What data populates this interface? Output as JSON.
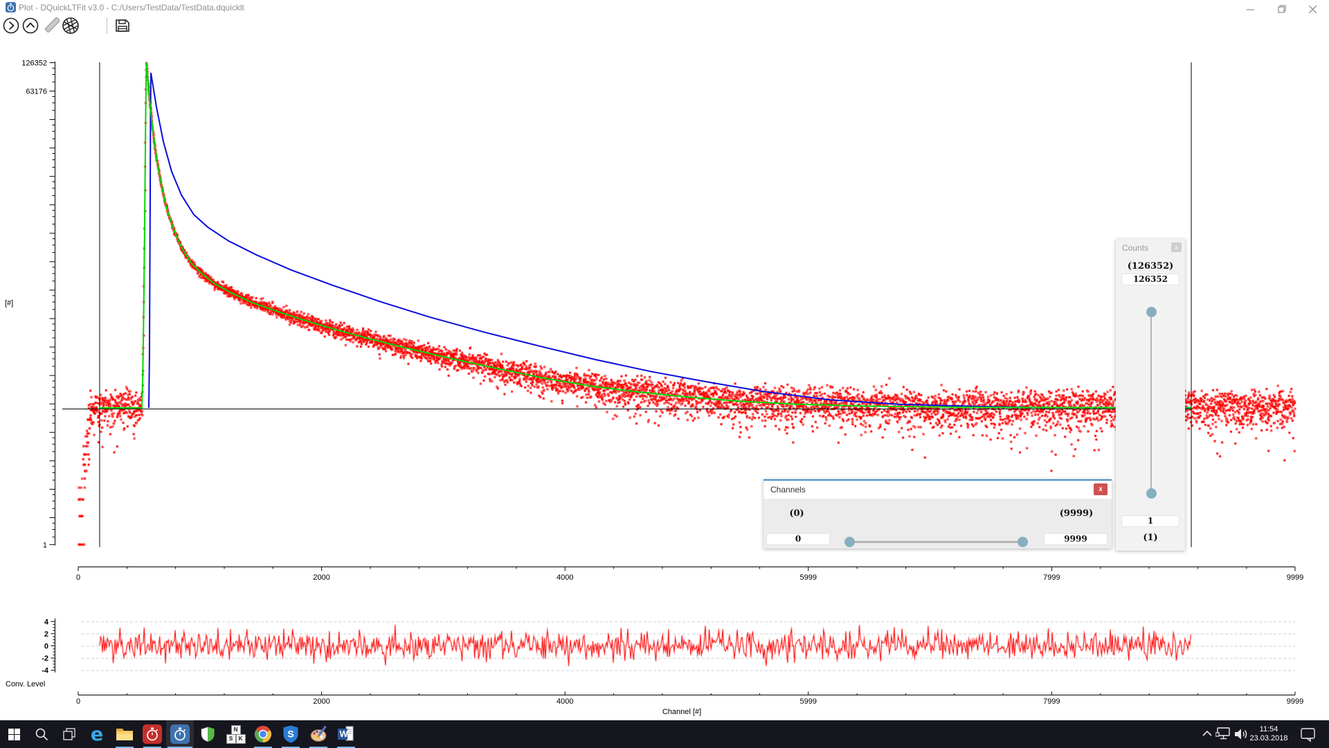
{
  "window": {
    "title": "Plot - DQuickLTFit v3.0 - C:/Users/TestData/TestData.dquicklt",
    "app_icon": "stopwatch-icon",
    "controls": [
      {
        "name": "minimize-button"
      },
      {
        "name": "restore-button"
      },
      {
        "name": "close-button"
      }
    ]
  },
  "toolbar": {
    "icons": [
      {
        "name": "chevron-right-circle-icon"
      },
      {
        "name": "chevron-up-circle-icon"
      },
      {
        "name": "pencil-icon"
      },
      {
        "name": "aperture-icon"
      },
      {
        "name": "save-icon"
      }
    ]
  },
  "chart_data": [
    {
      "type": "scatter",
      "title": "",
      "y_label": "[#]",
      "y_scale": "log2",
      "x_ticks": [
        {
          "label": "0",
          "ch": 0
        },
        {
          "label": "2000",
          "ch": 2000
        },
        {
          "label": "4000",
          "ch": 4000
        },
        {
          "label": "5999",
          "ch": 5999
        },
        {
          "label": "7999",
          "ch": 7999
        },
        {
          "label": "9999",
          "ch": 9999
        }
      ],
      "y_ticks": [
        {
          "label": "126352",
          "v": 126352
        },
        {
          "label": "63176",
          "v": 63176
        },
        {
          "label": "1",
          "v": 1
        }
      ],
      "xlim": [
        0,
        9999
      ],
      "ylim": [
        1,
        126352
      ],
      "baseline_counts": 28,
      "roi_channels": [
        176,
        9146
      ],
      "series": [
        {
          "name": "lifetime-spectrum-data",
          "type": "scatter",
          "color": "#ff0000",
          "marker": "3px squares, mix of filled and open",
          "noise_model": "poisson around fit curve, baseline 28 counts",
          "noise_seed": 1234,
          "step_ch": 1.6,
          "sigma_scale": 1.25,
          "open_fraction": 0.45,
          "outlier_prob": 0.003,
          "low_channel_ramp": "counts = exp(ch/30) capped at 28 for ch < 105"
        },
        {
          "name": "fit-curve",
          "type": "line",
          "color": "#00d800",
          "points_ch_counts": [
            [
              176,
              28
            ],
            [
              523,
              28
            ],
            [
              530,
              60
            ],
            [
              535,
              150
            ],
            [
              540,
              450
            ],
            [
              545,
              1800
            ],
            [
              549,
              6000
            ],
            [
              552,
              18000
            ],
            [
              555,
              45000
            ],
            [
              558,
              85000
            ],
            [
              561,
              117000
            ],
            [
              563,
              126352
            ],
            [
              574,
              78000
            ],
            [
              591,
              44500
            ],
            [
              614,
              23600
            ],
            [
              643,
              12400
            ],
            [
              677,
              7030
            ],
            [
              722,
              3830
            ],
            [
              779,
              2240
            ],
            [
              848,
              1400
            ],
            [
              927,
              960
            ],
            [
              1018,
              734
            ],
            [
              1120,
              580
            ],
            [
              1263,
              459
            ],
            [
              1433,
              363
            ],
            [
              1632,
              295
            ],
            [
              1860,
              237
            ],
            [
              2116,
              189
            ],
            [
              2400,
              150
            ],
            [
              2713,
              119
            ],
            [
              3054,
              94
            ],
            [
              3424,
              74
            ],
            [
              3822,
              58
            ],
            [
              4220,
              47.5
            ],
            [
              4618,
              41
            ],
            [
              5017,
              36.4
            ],
            [
              5443,
              32.9
            ],
            [
              5898,
              30.7
            ],
            [
              6467,
              29.2
            ],
            [
              7320,
              28.4
            ],
            [
              9146,
              28
            ]
          ]
        },
        {
          "name": "component-curve",
          "type": "line",
          "color": "#0b0bdc",
          "points_ch_counts": [
            [
              580,
              28
            ],
            [
              585,
              100
            ],
            [
              589,
              1200
            ],
            [
              592,
              8000
            ],
            [
              594,
              30000
            ],
            [
              596,
              70000
            ],
            [
              597,
              98600
            ],
            [
              643,
              42500
            ],
            [
              700,
              18300
            ],
            [
              768,
              8870
            ],
            [
              848,
              5010
            ],
            [
              950,
              3110
            ],
            [
              1063,
              2300
            ],
            [
              1234,
              1640
            ],
            [
              1462,
              1170
            ],
            [
              1746,
              810
            ],
            [
              2087,
              558
            ],
            [
              2485,
              372
            ],
            [
              2883,
              257
            ],
            [
              3338,
              177
            ],
            [
              3793,
              126
            ],
            [
              4248,
              91
            ],
            [
              4703,
              68
            ],
            [
              5158,
              53
            ],
            [
              5613,
              42
            ],
            [
              6182,
              34
            ],
            [
              6751,
              30.5
            ],
            [
              7320,
              29.1
            ],
            [
              7889,
              28.3
            ],
            [
              9146,
              28.2
            ]
          ]
        }
      ]
    },
    {
      "type": "line",
      "label": "Conv. Level",
      "x_label": "Channel [#]",
      "color": "#ff0000",
      "y_ticks": [
        {
          "label": "4",
          "v": 4
        },
        {
          "label": "2",
          "v": 2
        },
        {
          "label": "0",
          "v": 0
        },
        {
          "label": "-2",
          "v": -2
        },
        {
          "label": "-4",
          "v": -4
        }
      ],
      "ylim": [
        -4.6,
        4.6
      ],
      "x_range_ch": [
        176,
        9146
      ],
      "sigma": 1.2,
      "clip": 3.85,
      "gridline_color": "#cbcbcb",
      "grid_dashed": true
    }
  ],
  "panels": {
    "counts": {
      "title": "Counts",
      "close_glyph": "x",
      "max_hint": "(126352)",
      "max_value": "126352",
      "min_value": "1",
      "min_hint": "(1)"
    },
    "channels": {
      "title": "Channels",
      "close_glyph": "x",
      "left_hint": "(0)",
      "left_value": "0",
      "right_hint": "(9999)",
      "right_value": "9999"
    }
  },
  "taskbar": {
    "items": [
      {
        "name": "start-button",
        "icon": "windows-logo-icon"
      },
      {
        "name": "search-button",
        "icon": "search-icon"
      },
      {
        "name": "task-view-button",
        "icon": "task-view-icon"
      },
      {
        "name": "edge-button",
        "icon": "edge-icon",
        "glyph": "e"
      },
      {
        "name": "file-explorer-button",
        "icon": "folder-icon",
        "running": true
      },
      {
        "name": "dquickltfit-red-button",
        "icon": "stopwatch-icon",
        "running": true
      },
      {
        "name": "dquickltfit-blue-button",
        "icon": "stopwatch-icon",
        "running": true,
        "active": true
      },
      {
        "name": "defender-button",
        "icon": "shield-icon"
      },
      {
        "name": "keyboard-layout-button",
        "icon": "keys-icon",
        "keys": [
          "N",
          "S",
          "K"
        ]
      },
      {
        "name": "chrome-button",
        "icon": "chrome-icon",
        "running": true
      },
      {
        "name": "s-shield-button",
        "icon": "s-shield-icon",
        "glyph": "S",
        "running": true
      },
      {
        "name": "paint-button",
        "icon": "paint-palette-icon",
        "running": true
      },
      {
        "name": "word-button",
        "icon": "word-icon",
        "glyph": "W",
        "running": true
      }
    ],
    "tray": {
      "time": "11:54",
      "date": "23.03.2018",
      "icons": [
        "chevron-up-icon",
        "network-icon",
        "speaker-icon",
        "action-center-icon"
      ]
    }
  },
  "colors": {
    "data_red": "#ff0000",
    "fit_green": "#00d800",
    "component_blue": "#0b0bdc",
    "axis_black": "#000000",
    "slider_handle": "#87aec0",
    "panel_bg": "#f2f2f2",
    "channels_close_red": "#cd5150",
    "taskbar_bg": "#16161f",
    "running_indicator": "#76b9ed"
  }
}
